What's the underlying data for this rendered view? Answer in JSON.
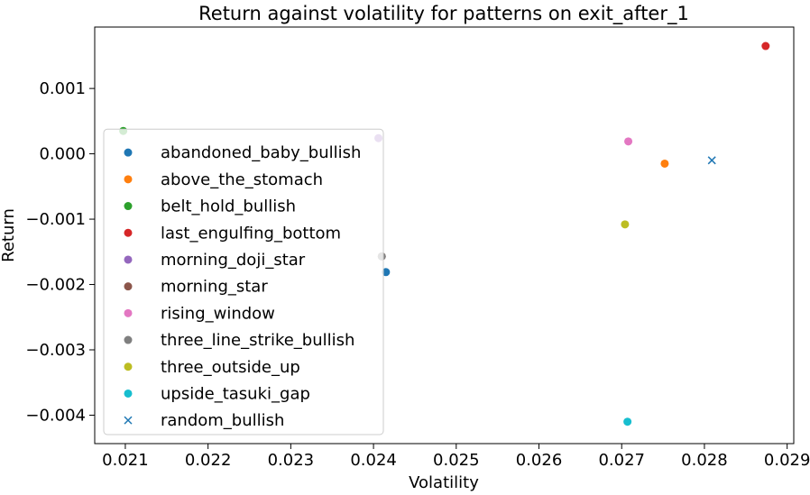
{
  "chart_data": {
    "type": "scatter",
    "title": "Return against volatility for patterns on exit_after_1",
    "xlabel": "Volatility",
    "ylabel": "Return",
    "xlim": [
      0.02063,
      0.02908
    ],
    "ylim": [
      -0.004435,
      0.00194
    ],
    "x_ticks": [
      0.021,
      0.022,
      0.023,
      0.024,
      0.025,
      0.026,
      0.027,
      0.028,
      0.029
    ],
    "x_tick_labels": [
      "0.021",
      "0.022",
      "0.023",
      "0.024",
      "0.025",
      "0.026",
      "0.027",
      "0.028",
      "0.029"
    ],
    "y_ticks": [
      0.001,
      0.0,
      -0.001,
      -0.002,
      -0.003,
      -0.004
    ],
    "y_tick_labels": [
      "0.001",
      "0.000",
      "−0.001",
      "−0.002",
      "−0.003",
      "−0.004"
    ],
    "grid": false,
    "legend_position": "lower-left",
    "series": [
      {
        "name": "abandoned_baby_bullish",
        "color": "#1f77b4",
        "marker": "circle",
        "x": [
          0.02415
        ],
        "y": [
          -0.00181
        ]
      },
      {
        "name": "above_the_stomach",
        "color": "#ff7f0e",
        "marker": "circle",
        "x": [
          0.02752
        ],
        "y": [
          -0.00015
        ]
      },
      {
        "name": "belt_hold_bullish",
        "color": "#2ca02c",
        "marker": "circle",
        "x": [
          0.020975
        ],
        "y": [
          0.00035
        ]
      },
      {
        "name": "last_engulfing_bottom",
        "color": "#d62728",
        "marker": "circle",
        "x": [
          0.02874
        ],
        "y": [
          0.00165
        ]
      },
      {
        "name": "morning_doji_star",
        "color": "#9467bd",
        "marker": "circle",
        "x": [
          0.02406
        ],
        "y": [
          0.00024
        ]
      },
      {
        "name": "morning_star",
        "color": "#8c564b",
        "marker": "circle",
        "x": [
          0.0241
        ],
        "y": [
          -0.00157
        ]
      },
      {
        "name": "rising_window",
        "color": "#e377c2",
        "marker": "circle",
        "x": [
          0.02708
        ],
        "y": [
          0.00019
        ]
      },
      {
        "name": "three_line_strike_bullish",
        "color": "#7f7f7f",
        "marker": "circle",
        "x": [
          0.0241
        ],
        "y": [
          -0.00157
        ]
      },
      {
        "name": "three_outside_up",
        "color": "#bcbd22",
        "marker": "circle",
        "x": [
          0.02704
        ],
        "y": [
          -0.00108
        ]
      },
      {
        "name": "upside_tasuki_gap",
        "color": "#17becf",
        "marker": "circle",
        "x": [
          0.02707
        ],
        "y": [
          -0.0041
        ]
      },
      {
        "name": "random_bullish",
        "color": "#1f77b4",
        "marker": "x",
        "x": [
          0.02809
        ],
        "y": [
          -0.0001
        ]
      }
    ]
  }
}
